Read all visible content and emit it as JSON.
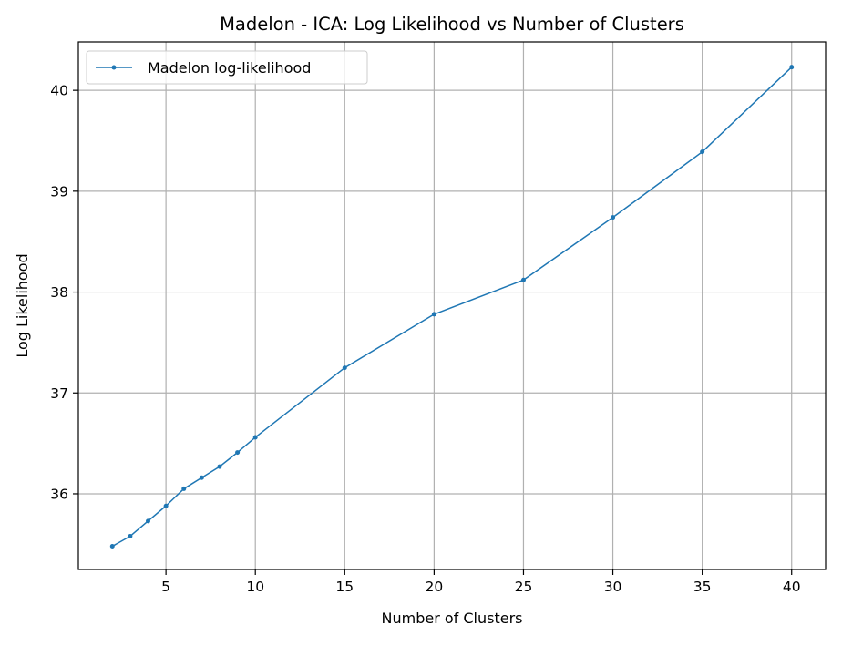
{
  "chart_data": {
    "type": "line",
    "title": "Madelon - ICA: Log Likelihood vs Number of Clusters",
    "xlabel": "Number of Clusters",
    "ylabel": "Log Likelihood",
    "xlim": [
      0.1,
      41.9
    ],
    "ylim": [
      35.25,
      40.48
    ],
    "xticks": [
      5,
      10,
      15,
      20,
      25,
      30,
      35,
      40
    ],
    "yticks": [
      36,
      37,
      38,
      39,
      40
    ],
    "grid": true,
    "legend_position": "top-left",
    "series": [
      {
        "name": "Madelon log-likelihood",
        "color": "#1f77b4",
        "marker": "circle",
        "x": [
          2,
          3,
          4,
          5,
          6,
          7,
          8,
          9,
          10,
          15,
          20,
          25,
          30,
          35,
          40
        ],
        "y": [
          35.48,
          35.58,
          35.73,
          35.88,
          36.05,
          36.16,
          36.27,
          36.41,
          36.56,
          37.25,
          37.78,
          38.12,
          38.74,
          39.39,
          40.23
        ]
      }
    ]
  }
}
